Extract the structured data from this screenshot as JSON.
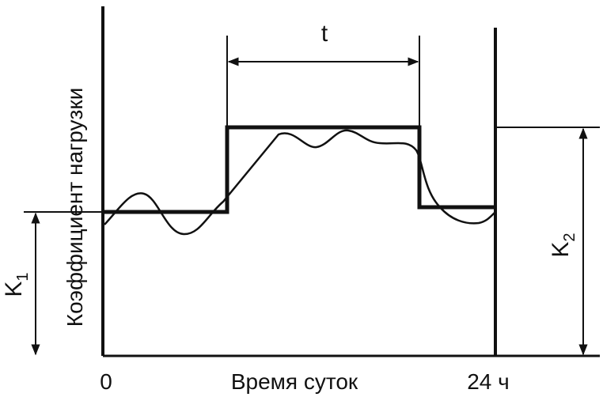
{
  "labels": {
    "t": "t",
    "y_axis": "Коэффициент нагрузки",
    "x_axis": "Время суток",
    "x_start": "0",
    "x_end": "24 ч",
    "k1_base": "K",
    "k1_sub": "1",
    "k2_base": "K",
    "k2_sub": "2"
  }
}
